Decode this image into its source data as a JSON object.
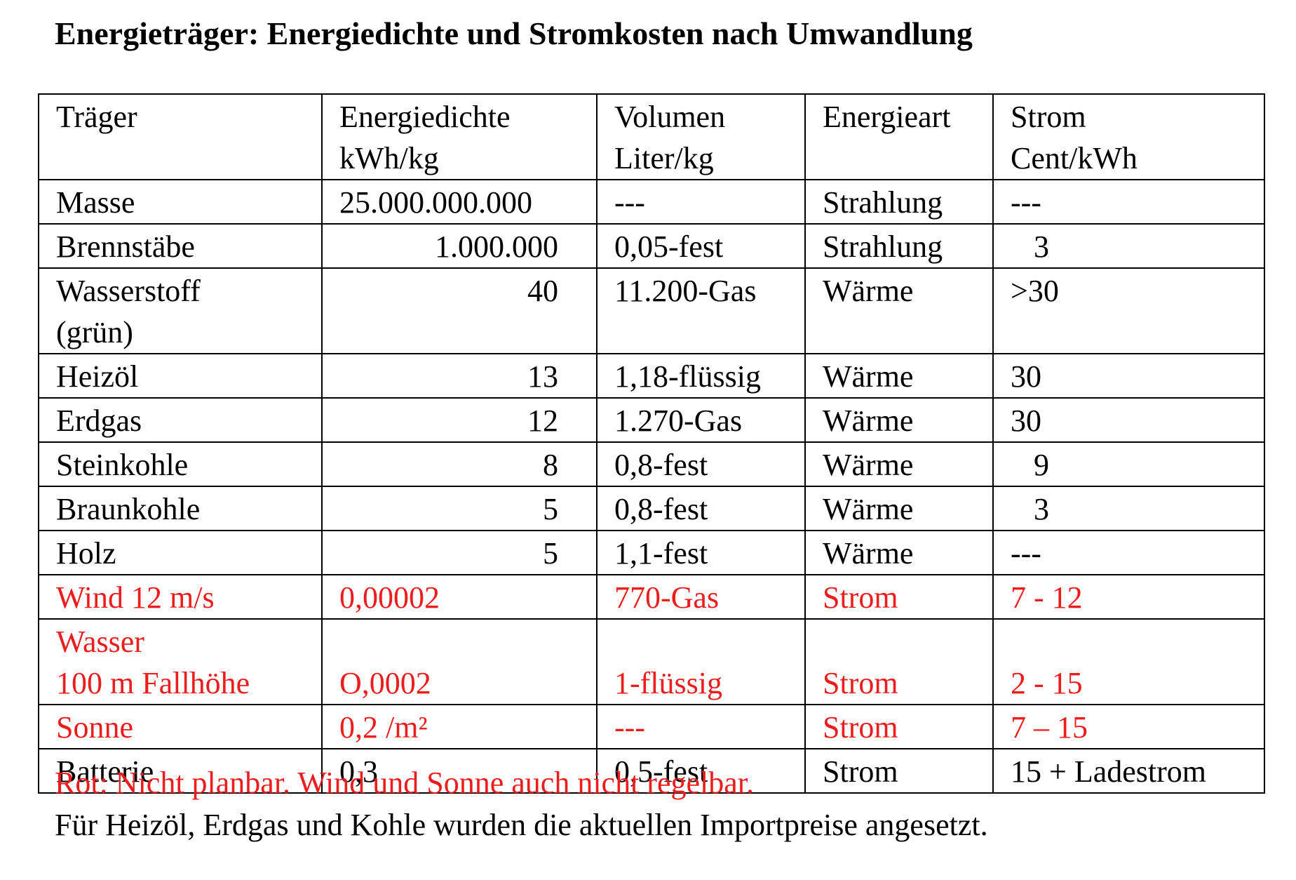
{
  "title": "Energieträger: Energiedichte und Stromkosten nach Umwandlung",
  "table": {
    "headers": [
      [
        "Träger"
      ],
      [
        "Energiedichte",
        "kWh/kg"
      ],
      [
        "Volumen",
        "Liter/kg"
      ],
      [
        "Energieart"
      ],
      [
        "Strom",
        "Cent/kWh"
      ]
    ],
    "rows": [
      {
        "traeger": [
          "Masse"
        ],
        "energiedichte": "25.000.000.000",
        "volumen": "---",
        "energieart": "Strahlung",
        "strom": "---",
        "color": "#000000"
      },
      {
        "traeger": [
          "Brennstäbe"
        ],
        "energiedichte": "1.000.000",
        "volumen": "0,05-fest",
        "energieart": "Strahlung",
        "strom": "3",
        "color": "#000000"
      },
      {
        "traeger": [
          "Wasserstoff",
          "(grün)"
        ],
        "energiedichte": "40",
        "volumen": "11.200-Gas",
        "energieart": "Wärme",
        "strom": ">30",
        "color": "#000000"
      },
      {
        "traeger": [
          "Heizöl"
        ],
        "energiedichte": "13",
        "volumen": "1,18-flüssig",
        "energieart": "Wärme",
        "strom": "30",
        "color": "#000000"
      },
      {
        "traeger": [
          "Erdgas"
        ],
        "energiedichte": "12",
        "volumen": "1.270-Gas",
        "energieart": "Wärme",
        "strom": "30",
        "color": "#000000"
      },
      {
        "traeger": [
          "Steinkohle"
        ],
        "energiedichte": "8",
        "volumen": "0,8-fest",
        "energieart": "Wärme",
        "strom": "9",
        "color": "#000000"
      },
      {
        "traeger": [
          "Braunkohle"
        ],
        "energiedichte": "5",
        "volumen": "0,8-fest",
        "energieart": "Wärme",
        "strom": "3",
        "color": "#000000"
      },
      {
        "traeger": [
          "Holz"
        ],
        "energiedichte": "5",
        "volumen": "1,1-fest",
        "energieart": "Wärme",
        "strom": "---",
        "color": "#000000"
      },
      {
        "traeger": [
          "Wind 12 m/s"
        ],
        "energiedichte": "0,00002",
        "volumen": "770-Gas",
        "energieart": "Strom",
        "strom": "7 - 12",
        "color": "#ee1c1c"
      },
      {
        "traeger": [
          "Wasser",
          "100 m Fallhöhe"
        ],
        "energiedichte": "O,0002",
        "volumen": "1-flüssig",
        "energieart": "Strom",
        "strom": "2 - 15",
        "color": "#ee1c1c"
      },
      {
        "traeger": [
          "Sonne"
        ],
        "energiedichte": "0,2 /m²",
        "volumen": "---",
        "energieart": "Strom",
        "strom": "7 – 15",
        "color": "#ee1c1c"
      },
      {
        "traeger": [
          "Batterie"
        ],
        "energiedichte": "0,3",
        "volumen": "0,5-fest",
        "energieart": "Strom",
        "strom": "15 + Ladestrom",
        "color": "#000000"
      }
    ]
  },
  "notes": {
    "red": "Rot: Nicht planbar. Wind und Sonne auch nicht regelbar.",
    "black": "Für Heizöl, Erdgas und Kohle wurden die aktuellen Importpreise angesetzt."
  },
  "colors": {
    "text": "#000000",
    "accent_red": "#ee1c1c",
    "border": "#000000"
  }
}
